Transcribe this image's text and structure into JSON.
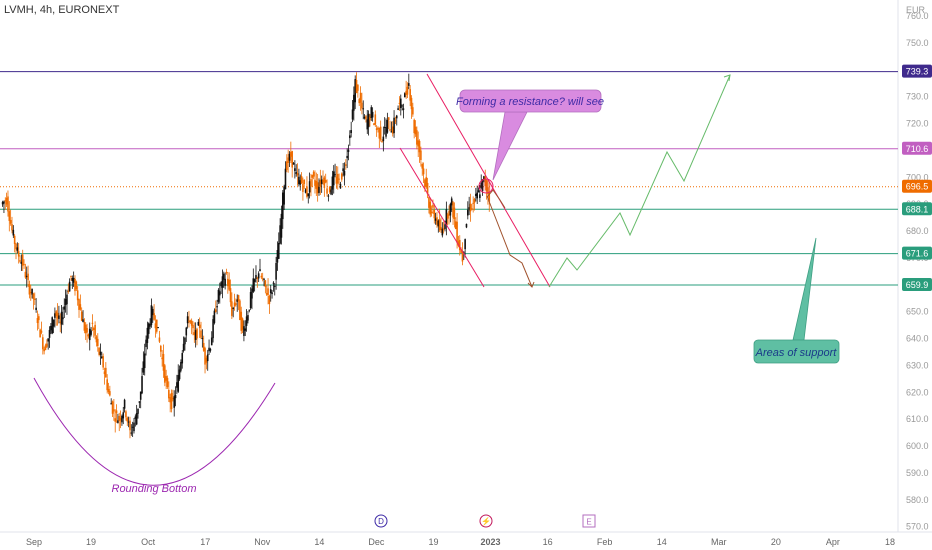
{
  "header": {
    "symbol_line": "LVMH, 4h, EURONEXT"
  },
  "chart_data": {
    "type": "candlestick",
    "symbol": "LVMH",
    "timeframe": "4h",
    "exchange": "EURONEXT",
    "currency_label": "EUR",
    "ylim": [
      568,
      763
    ],
    "y_ticks": [
      570,
      580,
      590,
      600,
      610,
      620,
      630,
      640,
      650,
      660,
      670,
      680,
      690,
      700,
      710,
      720,
      730,
      740,
      750,
      760
    ],
    "y_tick_labels": [
      "570.0",
      "580.0",
      "590.0",
      "600.0",
      "610.0",
      "620.0",
      "630.0",
      "640.0",
      "650.0",
      "660.0",
      "670.0",
      "680.0",
      "690.0",
      "700.0",
      "710.0",
      "720.0",
      "730.0",
      "740.0",
      "750.0",
      "760.0"
    ],
    "x_labels": [
      "Sep",
      "19",
      "Oct",
      "17",
      "Nov",
      "14",
      "Dec",
      "19",
      "2023",
      "16",
      "Feb",
      "14",
      "Mar",
      "20",
      "Apr",
      "18"
    ],
    "horizontal_levels": [
      {
        "value": 739.3,
        "label": "739.3",
        "color": "#3f2a8c"
      },
      {
        "value": 710.6,
        "label": "710.6",
        "color": "#c15fc1"
      },
      {
        "value": 696.5,
        "label": "696.5",
        "color": "#ef6c00"
      },
      {
        "value": 688.1,
        "label": "688.1",
        "color": "#2a9d7c"
      },
      {
        "value": 671.6,
        "label": "671.6",
        "color": "#2a9d7c"
      },
      {
        "value": 659.9,
        "label": "659.9",
        "color": "#2a9d7c"
      }
    ],
    "close_path": [
      [
        0,
        690
      ],
      [
        1,
        692
      ],
      [
        2,
        680
      ],
      [
        3,
        672
      ],
      [
        4,
        668
      ],
      [
        5,
        660
      ],
      [
        6,
        655
      ],
      [
        7,
        645
      ],
      [
        8,
        636
      ],
      [
        9,
        642
      ],
      [
        10,
        650
      ],
      [
        11,
        645
      ],
      [
        12,
        655
      ],
      [
        13,
        663
      ],
      [
        14,
        658
      ],
      [
        15,
        648
      ],
      [
        16,
        640
      ],
      [
        17,
        645
      ],
      [
        18,
        636
      ],
      [
        19,
        630
      ],
      [
        20,
        620
      ],
      [
        21,
        612
      ],
      [
        22,
        610
      ],
      [
        23,
        615
      ],
      [
        24,
        605
      ],
      [
        25,
        610
      ],
      [
        26,
        620
      ],
      [
        27,
        640
      ],
      [
        28,
        650
      ],
      [
        29,
        645
      ],
      [
        30,
        632
      ],
      [
        31,
        620
      ],
      [
        32,
        615
      ],
      [
        33,
        625
      ],
      [
        34,
        640
      ],
      [
        35,
        648
      ],
      [
        36,
        640
      ],
      [
        37,
        645
      ],
      [
        38,
        632
      ],
      [
        39,
        638
      ],
      [
        40,
        652
      ],
      [
        41,
        660
      ],
      [
        42,
        664
      ],
      [
        43,
        650
      ],
      [
        44,
        655
      ],
      [
        45,
        642
      ],
      [
        46,
        650
      ],
      [
        47,
        660
      ],
      [
        48,
        665
      ],
      [
        49,
        660
      ],
      [
        50,
        655
      ],
      [
        51,
        662
      ],
      [
        52,
        680
      ],
      [
        53,
        704
      ],
      [
        54,
        708
      ],
      [
        55,
        700
      ],
      [
        56,
        698
      ],
      [
        57,
        694
      ],
      [
        58,
        700
      ],
      [
        59,
        696
      ],
      [
        60,
        700
      ],
      [
        61,
        694
      ],
      [
        62,
        700
      ],
      [
        63,
        698
      ],
      [
        64,
        704
      ],
      [
        65,
        715
      ],
      [
        66,
        735
      ],
      [
        67,
        727
      ],
      [
        68,
        720
      ],
      [
        69,
        724
      ],
      [
        70,
        718
      ],
      [
        71,
        715
      ],
      [
        72,
        720
      ],
      [
        73,
        718
      ],
      [
        74,
        726
      ],
      [
        75,
        728
      ],
      [
        76,
        735
      ],
      [
        77,
        718
      ],
      [
        78,
        710
      ],
      [
        79,
        698
      ],
      [
        80,
        688
      ],
      [
        81,
        685
      ],
      [
        82,
        679
      ],
      [
        83,
        686
      ],
      [
        84,
        690
      ],
      [
        85,
        678
      ],
      [
        86,
        670
      ],
      [
        87,
        688
      ],
      [
        88,
        690
      ],
      [
        89,
        694
      ],
      [
        90,
        699
      ],
      [
        91,
        693
      ]
    ],
    "forecast_path_green": [
      [
        549,
        287
      ],
      [
        567,
        258
      ],
      [
        577,
        270
      ],
      [
        620,
        213
      ],
      [
        630,
        235
      ],
      [
        667,
        152
      ],
      [
        684,
        181
      ],
      [
        730,
        75
      ]
    ],
    "forecast_path_brown": [
      [
        487,
        196
      ],
      [
        510,
        255
      ],
      [
        522,
        263
      ],
      [
        532,
        287
      ]
    ],
    "channel_lines": [
      {
        "from": [
          427,
          74
        ],
        "to": [
          550,
          287
        ]
      },
      {
        "from": [
          400,
          148
        ],
        "to": [
          484,
          287
        ]
      }
    ],
    "rounding_bottom": {
      "from": [
        34,
        378
      ],
      "apex": [
        150,
        480
      ],
      "to": [
        275,
        383
      ]
    },
    "annotations": [
      {
        "text": "Forming a resistance? will see",
        "fill": "#d98be0",
        "text_color": "#3e2aa6"
      },
      {
        "text": "Areas of support",
        "fill": "#5fbfa3",
        "text_color": "#1a3a8a"
      },
      {
        "text": "Rounding Bottom",
        "text_color": "#9c27b0"
      }
    ],
    "event_markers": [
      "D",
      "⚡",
      "E"
    ],
    "grid": false,
    "legend": "none"
  }
}
